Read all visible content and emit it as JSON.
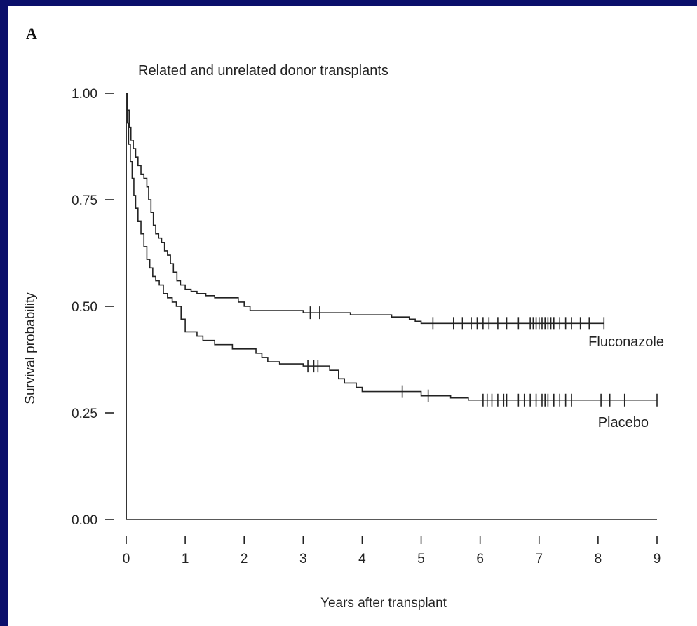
{
  "chart_data": {
    "type": "line",
    "panel_label": "A",
    "title": "Related and unrelated donor transplants",
    "xlabel": "Years after transplant",
    "ylabel": "Survival probability",
    "xlim": [
      0,
      9
    ],
    "ylim": [
      0,
      1
    ],
    "x_ticks": [
      0,
      1,
      2,
      3,
      4,
      5,
      6,
      7,
      8,
      9
    ],
    "x_tick_labels": [
      "0",
      "1",
      "2",
      "3",
      "4",
      "5",
      "6",
      "7",
      "8",
      "9"
    ],
    "y_ticks": [
      0,
      0.25,
      0.5,
      0.75,
      1
    ],
    "y_tick_labels": [
      "0.00",
      "0.25",
      "0.50",
      "0.75",
      "1.00"
    ],
    "grid": false,
    "legend": "none",
    "series": [
      {
        "name": "Fluconazole",
        "step_points": [
          [
            0,
            1.0
          ],
          [
            0.02,
            0.96
          ],
          [
            0.05,
            0.92
          ],
          [
            0.08,
            0.89
          ],
          [
            0.12,
            0.87
          ],
          [
            0.16,
            0.85
          ],
          [
            0.2,
            0.83
          ],
          [
            0.25,
            0.81
          ],
          [
            0.3,
            0.8
          ],
          [
            0.35,
            0.78
          ],
          [
            0.38,
            0.75
          ],
          [
            0.42,
            0.72
          ],
          [
            0.46,
            0.69
          ],
          [
            0.5,
            0.67
          ],
          [
            0.55,
            0.66
          ],
          [
            0.6,
            0.65
          ],
          [
            0.65,
            0.63
          ],
          [
            0.7,
            0.62
          ],
          [
            0.75,
            0.6
          ],
          [
            0.8,
            0.58
          ],
          [
            0.86,
            0.56
          ],
          [
            0.92,
            0.55
          ],
          [
            1.0,
            0.54
          ],
          [
            1.1,
            0.535
          ],
          [
            1.2,
            0.53
          ],
          [
            1.35,
            0.525
          ],
          [
            1.5,
            0.52
          ],
          [
            1.8,
            0.52
          ],
          [
            1.9,
            0.51
          ],
          [
            2.0,
            0.5
          ],
          [
            2.1,
            0.49
          ],
          [
            2.5,
            0.49
          ],
          [
            3.0,
            0.485
          ],
          [
            3.3,
            0.485
          ],
          [
            3.8,
            0.48
          ],
          [
            4.5,
            0.475
          ],
          [
            4.8,
            0.47
          ],
          [
            4.9,
            0.465
          ],
          [
            5.0,
            0.46
          ],
          [
            8.1,
            0.46
          ]
        ],
        "censor_times": [
          3.12,
          3.28,
          5.2,
          5.55,
          5.7,
          5.85,
          5.95,
          6.05,
          6.15,
          6.3,
          6.45,
          6.65,
          6.85,
          6.9,
          6.95,
          7.0,
          7.05,
          7.1,
          7.15,
          7.2,
          7.25,
          7.35,
          7.45,
          7.55,
          7.7,
          7.85,
          8.1
        ]
      },
      {
        "name": "Placebo",
        "step_points": [
          [
            0,
            1.0
          ],
          [
            0.02,
            0.93
          ],
          [
            0.04,
            0.88
          ],
          [
            0.07,
            0.84
          ],
          [
            0.1,
            0.8
          ],
          [
            0.13,
            0.76
          ],
          [
            0.16,
            0.73
          ],
          [
            0.2,
            0.7
          ],
          [
            0.25,
            0.67
          ],
          [
            0.3,
            0.64
          ],
          [
            0.35,
            0.61
          ],
          [
            0.4,
            0.59
          ],
          [
            0.45,
            0.57
          ],
          [
            0.5,
            0.56
          ],
          [
            0.56,
            0.55
          ],
          [
            0.63,
            0.53
          ],
          [
            0.7,
            0.52
          ],
          [
            0.78,
            0.51
          ],
          [
            0.85,
            0.5
          ],
          [
            0.93,
            0.47
          ],
          [
            1.0,
            0.44
          ],
          [
            1.2,
            0.43
          ],
          [
            1.3,
            0.42
          ],
          [
            1.5,
            0.41
          ],
          [
            1.8,
            0.4
          ],
          [
            2.2,
            0.39
          ],
          [
            2.3,
            0.38
          ],
          [
            2.4,
            0.37
          ],
          [
            2.6,
            0.365
          ],
          [
            3.0,
            0.36
          ],
          [
            3.3,
            0.36
          ],
          [
            3.45,
            0.35
          ],
          [
            3.6,
            0.33
          ],
          [
            3.7,
            0.32
          ],
          [
            3.9,
            0.31
          ],
          [
            4.0,
            0.3
          ],
          [
            4.9,
            0.3
          ],
          [
            5.0,
            0.29
          ],
          [
            5.3,
            0.29
          ],
          [
            5.5,
            0.285
          ],
          [
            5.8,
            0.28
          ],
          [
            9.0,
            0.28
          ]
        ],
        "censor_times": [
          3.08,
          3.18,
          3.25,
          4.68,
          5.12,
          6.05,
          6.12,
          6.2,
          6.3,
          6.4,
          6.45,
          6.65,
          6.75,
          6.85,
          6.95,
          7.05,
          7.1,
          7.15,
          7.25,
          7.35,
          7.45,
          7.55,
          8.05,
          8.2,
          8.45,
          9.0
        ]
      }
    ]
  }
}
